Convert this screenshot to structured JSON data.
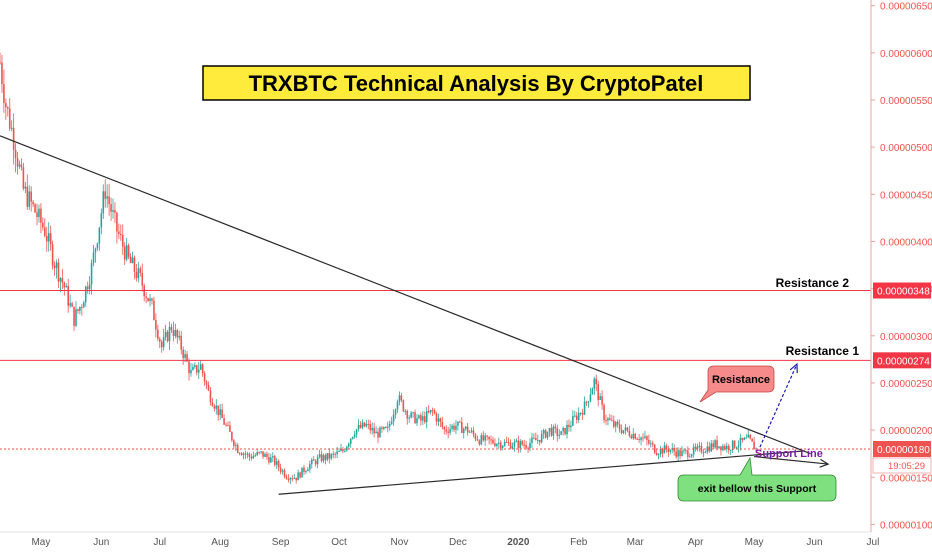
{
  "chart_data": {
    "type": "candlestick",
    "title": "TRXBTC Technical Analysis By CryptoPatel",
    "y_axis": {
      "position": "right",
      "range": [
        9.2e-07,
        6.56e-06
      ],
      "ticks": [
        "0.00000650",
        "0.00000600",
        "0.00000550",
        "0.00000500",
        "0.00000450",
        "0.00000400",
        "0.00000350",
        "0.00000300",
        "0.00000250",
        "0.00000200",
        "0.00000150",
        "0.00000100"
      ]
    },
    "x_axis": {
      "range": [
        "2019-04-10",
        "2020-06-30"
      ],
      "ticks": [
        {
          "label": "May",
          "date": "2019-05-01"
        },
        {
          "label": "Jun",
          "date": "2019-06-01"
        },
        {
          "label": "Jul",
          "date": "2019-07-01"
        },
        {
          "label": "Aug",
          "date": "2019-08-01"
        },
        {
          "label": "Sep",
          "date": "2019-09-01"
        },
        {
          "label": "Oct",
          "date": "2019-10-01"
        },
        {
          "label": "Nov",
          "date": "2019-11-01"
        },
        {
          "label": "Dec",
          "date": "2019-12-01"
        },
        {
          "label": "2020",
          "date": "2020-01-01"
        },
        {
          "label": "Feb",
          "date": "2020-02-01"
        },
        {
          "label": "Mar",
          "date": "2020-03-01"
        },
        {
          "label": "Apr",
          "date": "2020-04-01"
        },
        {
          "label": "May",
          "date": "2020-05-01"
        },
        {
          "label": "Jun",
          "date": "2020-06-01"
        },
        {
          "label": "Jul",
          "date": "2020-07-01"
        }
      ]
    },
    "price_path": [
      [
        "2019-04-10",
        5.9e-06
      ],
      [
        "2019-04-13",
        5.45e-06
      ],
      [
        "2019-04-17",
        5.1e-06
      ],
      [
        "2019-04-22",
        4.55e-06
      ],
      [
        "2019-04-28",
        4.32e-06
      ],
      [
        "2019-05-03",
        4.12e-06
      ],
      [
        "2019-05-08",
        3.78e-06
      ],
      [
        "2019-05-13",
        3.52e-06
      ],
      [
        "2019-05-18",
        3.18e-06
      ],
      [
        "2019-05-22",
        3.35e-06
      ],
      [
        "2019-05-27",
        3.72e-06
      ],
      [
        "2019-06-03",
        4.55e-06
      ],
      [
        "2019-06-09",
        4.12e-06
      ],
      [
        "2019-06-15",
        3.8e-06
      ],
      [
        "2019-06-21",
        3.6e-06
      ],
      [
        "2019-06-27",
        3.3e-06
      ],
      [
        "2019-07-02",
        2.88e-06
      ],
      [
        "2019-07-07",
        3.1e-06
      ],
      [
        "2019-07-12",
        2.88e-06
      ],
      [
        "2019-07-17",
        2.6e-06
      ],
      [
        "2019-07-22",
        2.68e-06
      ],
      [
        "2019-07-26",
        2.4e-06
      ],
      [
        "2019-07-31",
        2.2e-06
      ],
      [
        "2019-08-05",
        2e-06
      ],
      [
        "2019-08-10",
        1.8e-06
      ],
      [
        "2019-08-16",
        1.72e-06
      ],
      [
        "2019-08-22",
        1.75e-06
      ],
      [
        "2019-08-28",
        1.68e-06
      ],
      [
        "2019-09-04",
        1.52e-06
      ],
      [
        "2019-09-09",
        1.5e-06
      ],
      [
        "2019-09-15",
        1.62e-06
      ],
      [
        "2019-09-21",
        1.7e-06
      ],
      [
        "2019-09-27",
        1.72e-06
      ],
      [
        "2019-10-03",
        1.78e-06
      ],
      [
        "2019-10-09",
        2e-06
      ],
      [
        "2019-10-15",
        2.05e-06
      ],
      [
        "2019-10-20",
        1.96e-06
      ],
      [
        "2019-10-26",
        2e-06
      ],
      [
        "2019-10-31",
        2.35e-06
      ],
      [
        "2019-11-06",
        2.15e-06
      ],
      [
        "2019-11-12",
        2.1e-06
      ],
      [
        "2019-11-18",
        2.2e-06
      ],
      [
        "2019-11-24",
        2e-06
      ],
      [
        "2019-11-30",
        2.05e-06
      ],
      [
        "2019-12-06",
        2e-06
      ],
      [
        "2019-12-12",
        1.9e-06
      ],
      [
        "2019-12-18",
        1.88e-06
      ],
      [
        "2019-12-24",
        1.86e-06
      ],
      [
        "2019-12-30",
        1.85e-06
      ],
      [
        "2020-01-05",
        1.85e-06
      ],
      [
        "2020-01-11",
        1.9e-06
      ],
      [
        "2020-01-17",
        2e-06
      ],
      [
        "2020-01-23",
        1.95e-06
      ],
      [
        "2020-01-29",
        2.1e-06
      ],
      [
        "2020-02-04",
        2.25e-06
      ],
      [
        "2020-02-09",
        2.52e-06
      ],
      [
        "2020-02-14",
        2.15e-06
      ],
      [
        "2020-02-19",
        2.05e-06
      ],
      [
        "2020-02-24",
        2e-06
      ],
      [
        "2020-03-01",
        1.95e-06
      ],
      [
        "2020-03-06",
        1.9e-06
      ],
      [
        "2020-03-12",
        1.78e-06
      ],
      [
        "2020-03-18",
        1.8e-06
      ],
      [
        "2020-03-24",
        1.75e-06
      ],
      [
        "2020-03-30",
        1.77e-06
      ],
      [
        "2020-04-05",
        1.8e-06
      ],
      [
        "2020-04-11",
        1.85e-06
      ],
      [
        "2020-04-17",
        1.82e-06
      ],
      [
        "2020-04-23",
        1.86e-06
      ],
      [
        "2020-04-28",
        1.9e-06
      ],
      [
        "2020-05-02",
        1.8e-06
      ]
    ],
    "horizontal_lines": [
      {
        "label": "Resistance 2",
        "value": 3.48e-06,
        "price_label": "0.00000348",
        "color": "#f23645"
      },
      {
        "label": "Resistance 1",
        "value": 2.74e-06,
        "price_label": "0.00000274",
        "color": "#f23645"
      }
    ],
    "current_price": {
      "value": 1.8e-06,
      "label": "0.00000180",
      "countdown": "19:05:29",
      "color": "#ef5350"
    },
    "trendlines": [
      {
        "name": "resistance-trendline",
        "from": [
          "2019-04-10",
          5.12e-06
        ],
        "to": [
          "2020-05-30",
          1.75e-06
        ],
        "color": "#2a2a2a"
      },
      {
        "name": "support-trendline",
        "from": [
          "2019-08-31",
          1.32e-06
        ],
        "to": [
          "2020-05-27",
          1.78e-06
        ],
        "color": "#2a2a2a"
      }
    ],
    "arrows": [
      {
        "name": "support-arrow",
        "from": [
          "2020-05-01",
          1.72e-06
        ],
        "to": [
          "2020-06-08",
          1.64e-06
        ],
        "color": "#2a2a2a"
      },
      {
        "name": "breakout-arrow",
        "from": [
          "2020-05-04",
          1.82e-06
        ],
        "to": [
          "2020-05-23",
          2.7e-06
        ],
        "color": "#1a1ab0"
      }
    ],
    "annotations": {
      "title_box": {
        "text": "TRXBTC Technical Analysis By CryptoPatel",
        "bg": "#ffeb3b",
        "border": "#000000"
      },
      "resistance_callout": {
        "text": "Resistance",
        "bg": "#f78b8b"
      },
      "support_label": {
        "text": "Support Line",
        "color": "#7b1fa2"
      },
      "exit_callout": {
        "text": "exit bellow this Support",
        "bg": "#7ee07e"
      },
      "r2_label": "Resistance 2",
      "r1_label": "Resistance 1"
    },
    "colors": {
      "up": "#26a69a",
      "down": "#ef5350",
      "axis_text": "#ef5350",
      "grid": "none"
    },
    "grid": false
  }
}
